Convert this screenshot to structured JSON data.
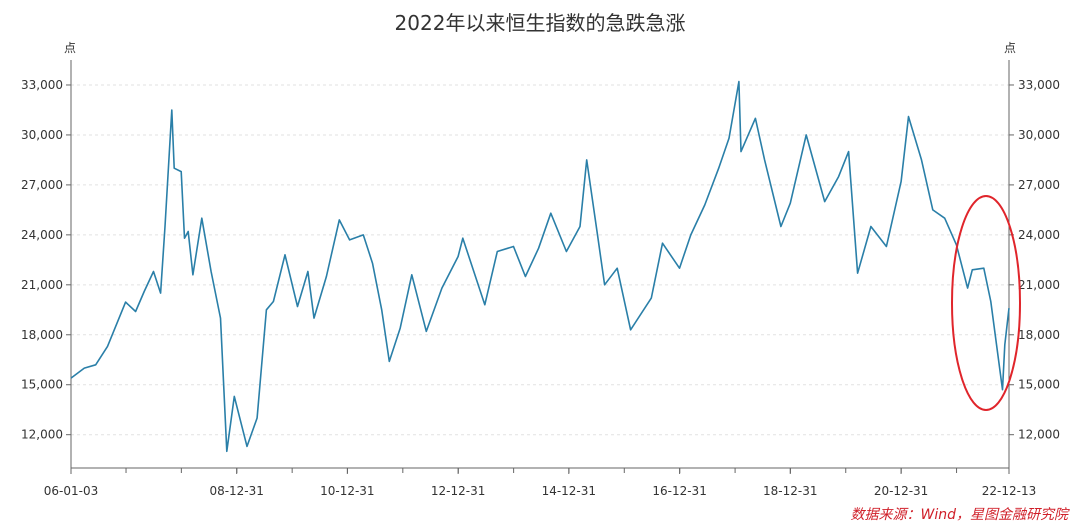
{
  "chart_data": {
    "type": "line",
    "title": "2022年以来恒生指数的急跌急涨",
    "y_unit_left": "点",
    "y_unit_right": "点",
    "ylim": [
      10000,
      34500
    ],
    "y_ticks": [
      12000,
      15000,
      18000,
      21000,
      24000,
      27000,
      30000,
      33000
    ],
    "y_tick_labels": [
      "12,000",
      "15,000",
      "18,000",
      "21,000",
      "24,000",
      "27,000",
      "30,000",
      "33,000"
    ],
    "x_range": [
      "2006-01-03",
      "2022-12-13"
    ],
    "x_ticks": [
      "2006-01-03",
      "2008-12-31",
      "2010-12-31",
      "2012-12-31",
      "2014-12-31",
      "2016-12-31",
      "2018-12-31",
      "2020-12-31",
      "2022-12-13"
    ],
    "x_tick_labels": [
      "06-01-03",
      "08-12-31",
      "10-12-31",
      "12-12-31",
      "14-12-31",
      "16-12-31",
      "18-12-31",
      "20-12-31",
      "22-12-13"
    ],
    "grid": "horizontal dashed",
    "line_color": "#2a7fa8",
    "highlight_color": "#e0252b",
    "series": [
      {
        "x": [
          "2006-01-03",
          "2006-04-01",
          "2006-06-15",
          "2006-09-01",
          "2006-12-29",
          "2007-03-05",
          "2007-05-01",
          "2007-07-01",
          "2007-08-17",
          "2007-09-15",
          "2007-10-30",
          "2007-11-15",
          "2007-12-31",
          "2008-01-22",
          "2008-02-15",
          "2008-03-17",
          "2008-05-15",
          "2008-07-15",
          "2008-09-15",
          "2008-10-27",
          "2008-12-15",
          "2009-03-09",
          "2009-05-15",
          "2009-07-15",
          "2009-08-30",
          "2009-11-15",
          "2010-02-05",
          "2010-04-15",
          "2010-05-25",
          "2010-08-15",
          "2010-11-08",
          "2011-01-15",
          "2011-04-15",
          "2011-06-15",
          "2011-08-15",
          "2011-10-04",
          "2011-12-15",
          "2012-02-29",
          "2012-06-04",
          "2012-09-15",
          "2012-12-31",
          "2013-01-31",
          "2013-06-25",
          "2013-09-15",
          "2013-12-31",
          "2014-03-20",
          "2014-06-15",
          "2014-09-03",
          "2014-12-15",
          "2015-03-15",
          "2015-04-28",
          "2015-07-08",
          "2015-08-24",
          "2015-11-15",
          "2016-02-12",
          "2016-06-27",
          "2016-09-09",
          "2016-12-30",
          "2017-03-15",
          "2017-06-15",
          "2017-09-15",
          "2017-11-22",
          "2018-01-26",
          "2018-02-09",
          "2018-05-15",
          "2018-07-15",
          "2018-10-30",
          "2018-12-31",
          "2019-04-15",
          "2019-08-15",
          "2019-11-15",
          "2020-01-20",
          "2020-03-19",
          "2020-06-15",
          "2020-09-25",
          "2020-12-31",
          "2021-02-18",
          "2021-05-15",
          "2021-07-28",
          "2021-10-15",
          "2021-12-31",
          "2022-03-15",
          "2022-04-15",
          "2022-06-30",
          "2022-08-15",
          "2022-10-31",
          "2022-11-15",
          "2022-12-13"
        ],
        "y": [
          15400,
          16000,
          16200,
          17300,
          19960,
          19400,
          20600,
          21800,
          20500,
          24500,
          31500,
          28000,
          27800,
          23800,
          24200,
          21600,
          25000,
          21800,
          19000,
          11000,
          14300,
          11300,
          13000,
          19500,
          20000,
          22800,
          19700,
          21800,
          19000,
          21500,
          24900,
          23700,
          24000,
          22300,
          19500,
          16400,
          18400,
          21600,
          18200,
          20800,
          22700,
          23800,
          19800,
          23000,
          23300,
          21500,
          23200,
          25300,
          23000,
          24500,
          28500,
          24000,
          21000,
          22000,
          18300,
          20200,
          23500,
          22000,
          24000,
          25800,
          28000,
          29800,
          33200,
          29000,
          31000,
          28500,
          24500,
          25900,
          30000,
          26000,
          27500,
          29000,
          21700,
          24500,
          23300,
          27200,
          31100,
          28500,
          25500,
          25000,
          23400,
          20800,
          21900,
          22000,
          20000,
          14700,
          17400,
          19600
        ]
      }
    ],
    "source": "数据来源：Wind，星图金融研究院"
  }
}
